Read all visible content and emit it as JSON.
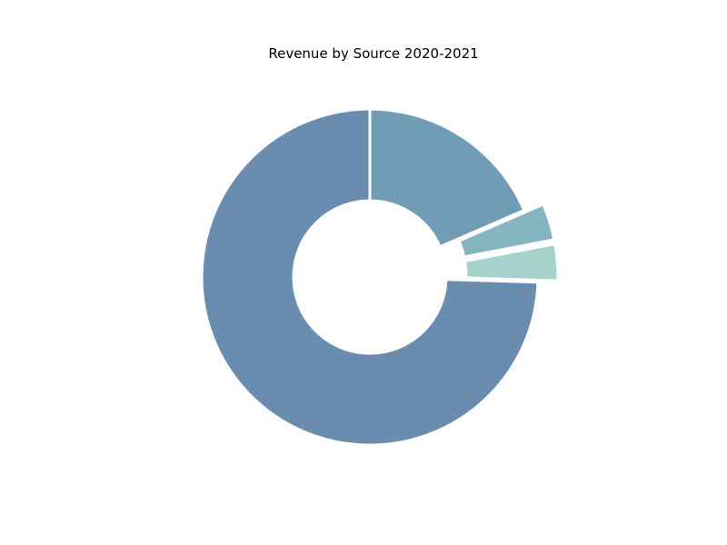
{
  "chart_data": {
    "type": "pie",
    "variant": "donut",
    "title": "Revenue by Source 2020-2021",
    "start_angle_deg": 90,
    "direction": "clockwise",
    "slices": [
      {
        "value": 18.5,
        "color": "#709db5",
        "exploded": false
      },
      {
        "value": 3.5,
        "color": "#84b5c0",
        "exploded": true
      },
      {
        "value": 3.5,
        "color": "#a5d3cc",
        "exploded": true
      },
      {
        "value": 74.5,
        "color": "#6a8caf",
        "exploded": false
      }
    ],
    "legend": "none",
    "grid": false
  }
}
